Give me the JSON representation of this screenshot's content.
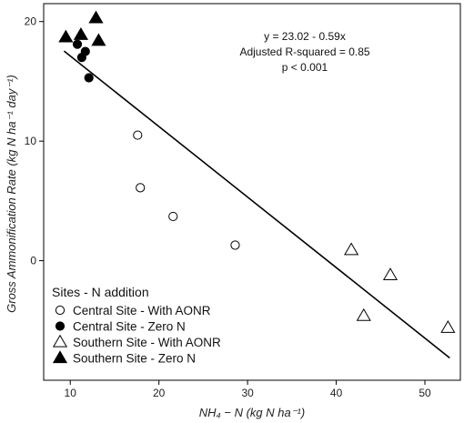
{
  "chart_data": {
    "type": "scatter",
    "title": "",
    "xlabel": "NH₄ − N (kg N ha⁻¹)",
    "ylabel": "Gross Ammonification Rate (kg N ha⁻¹ day⁻¹)",
    "xlim": [
      7,
      54
    ],
    "ylim": [
      -10,
      21.5
    ],
    "x_ticks": [
      10,
      20,
      30,
      40,
      50
    ],
    "y_ticks": [
      0,
      10,
      20
    ],
    "grid": false,
    "legend_placement": "bottom-left",
    "legend_title": "Sites - N addition",
    "series": [
      {
        "name": "Central Site - With AONR",
        "marker": "circle-open",
        "points": [
          [
            17.6,
            10.5
          ],
          [
            17.9,
            6.1
          ],
          [
            21.6,
            3.7
          ],
          [
            28.6,
            1.3
          ]
        ]
      },
      {
        "name": "Central Site - Zero N",
        "marker": "circle-filled",
        "points": [
          [
            10.8,
            18.1
          ],
          [
            11.3,
            17.0
          ],
          [
            11.7,
            17.5
          ],
          [
            12.1,
            15.3
          ]
        ]
      },
      {
        "name": "Southern Site - With AONR",
        "marker": "triangle-open",
        "points": [
          [
            41.7,
            0.9
          ],
          [
            43.1,
            -4.6
          ],
          [
            46.1,
            -1.2
          ],
          [
            52.6,
            -5.6
          ]
        ]
      },
      {
        "name": "Southern Site - Zero N",
        "marker": "triangle-filled",
        "points": [
          [
            9.5,
            18.7
          ],
          [
            11.2,
            18.9
          ],
          [
            12.9,
            20.3
          ],
          [
            13.2,
            18.4
          ]
        ]
      }
    ],
    "regression": {
      "intercept": 23.02,
      "slope": -0.59,
      "x_range": [
        9.3,
        52.8
      ]
    },
    "annotation": [
      "y = 23.02 - 0.59x",
      "Adjusted R-squared = 0.85",
      "p < 0.001"
    ]
  }
}
